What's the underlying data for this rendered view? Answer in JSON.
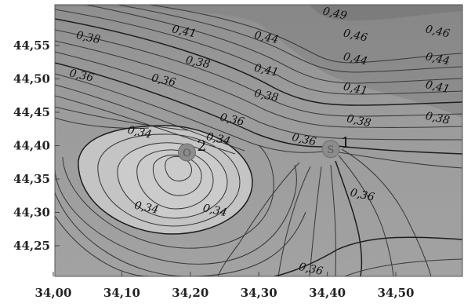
{
  "chart_data": {
    "type": "contour",
    "title": "",
    "xlabel": "",
    "ylabel": "",
    "xlim": [
      34.0,
      34.6
    ],
    "ylim": [
      44.2,
      44.6
    ],
    "x_ticks": [
      "34,00",
      "34,10",
      "34,20",
      "34,30",
      "34,40",
      "34,50"
    ],
    "x_tick_values": [
      34.0,
      34.1,
      34.2,
      34.3,
      34.4,
      34.5
    ],
    "y_ticks": [
      "44,55",
      "44,50",
      "44,45",
      "44,40",
      "44,35",
      "44,30",
      "44,25"
    ],
    "y_tick_values": [
      44.55,
      44.5,
      44.45,
      44.4,
      44.35,
      44.3,
      44.25
    ],
    "grid": false,
    "colors": {
      "background": "#ffffff",
      "fill_low": "#c4c4c4",
      "fill_mid": "#9d9d9d",
      "fill_high": "#878787",
      "contour": "#3a3a3a",
      "marker": "#8c8c8c"
    },
    "contour_labels": [
      {
        "text": "0,38",
        "x": 34.05,
        "y": 44.557
      },
      {
        "text": "0,41",
        "x": 34.19,
        "y": 44.566
      },
      {
        "text": "0,44",
        "x": 34.31,
        "y": 44.557
      },
      {
        "text": "0,49",
        "x": 34.41,
        "y": 44.593
      },
      {
        "text": "0,46",
        "x": 34.44,
        "y": 44.56
      },
      {
        "text": "0,46",
        "x": 34.56,
        "y": 44.566
      },
      {
        "text": "0,38",
        "x": 34.21,
        "y": 44.52
      },
      {
        "text": "0,41",
        "x": 34.31,
        "y": 44.508
      },
      {
        "text": "0,44",
        "x": 34.44,
        "y": 44.525
      },
      {
        "text": "0,44",
        "x": 34.56,
        "y": 44.525
      },
      {
        "text": "0,36",
        "x": 34.04,
        "y": 44.5
      },
      {
        "text": "0,36",
        "x": 34.16,
        "y": 44.493
      },
      {
        "text": "0,38",
        "x": 34.31,
        "y": 44.47
      },
      {
        "text": "0,41",
        "x": 34.44,
        "y": 44.48
      },
      {
        "text": "0,41",
        "x": 34.56,
        "y": 44.483
      },
      {
        "text": "0,36",
        "x": 34.26,
        "y": 44.434
      },
      {
        "text": "0,38",
        "x": 34.445,
        "y": 44.432
      },
      {
        "text": "0,38",
        "x": 34.56,
        "y": 44.436
      },
      {
        "text": "0,34",
        "x": 34.125,
        "y": 44.415
      },
      {
        "text": "0,34",
        "x": 34.24,
        "y": 44.405
      },
      {
        "text": "0,36",
        "x": 34.365,
        "y": 44.404
      },
      {
        "text": "0,36",
        "x": 34.45,
        "y": 44.321
      },
      {
        "text": "0,34",
        "x": 34.135,
        "y": 44.302
      },
      {
        "text": "0,34",
        "x": 34.235,
        "y": 44.298
      },
      {
        "text": "0,36",
        "x": 34.375,
        "y": 44.21
      }
    ],
    "points": [
      {
        "label": "1",
        "x": 34.405,
        "y": 44.395,
        "glyph": "S"
      },
      {
        "label": "2",
        "x": 34.195,
        "y": 44.39,
        "glyph": "O"
      }
    ]
  }
}
